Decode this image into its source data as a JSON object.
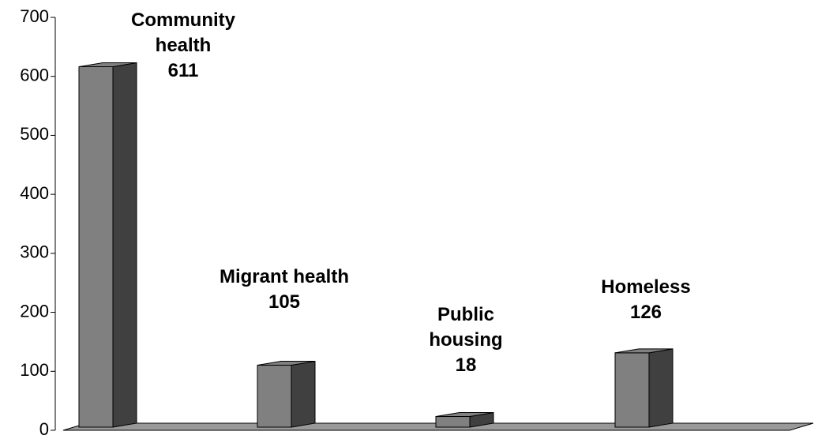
{
  "chart_data": {
    "type": "bar",
    "categories": [
      "Community health",
      "Migrant health",
      "Public housing",
      "Homeless"
    ],
    "values": [
      611,
      105,
      18,
      126
    ],
    "color": "#808080",
    "side_color": "#404040",
    "floor_color": "#999999",
    "ylim": [
      0,
      700
    ],
    "yticks": [
      0,
      100,
      200,
      300,
      400,
      500,
      600,
      700
    ]
  }
}
